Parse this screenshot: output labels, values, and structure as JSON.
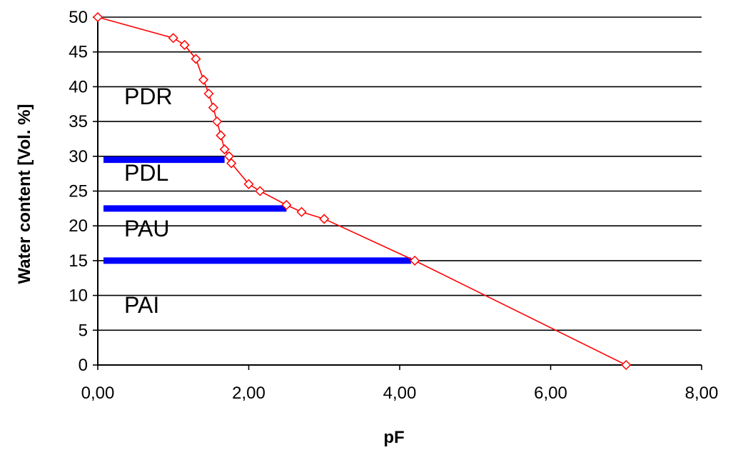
{
  "chart_data": {
    "type": "line",
    "xlabel": "pF",
    "ylabel": "Water content [Vol. %]",
    "xlim": [
      0,
      8
    ],
    "ylim": [
      0,
      50
    ],
    "x_ticks": [
      "0,00",
      "2,00",
      "4,00",
      "6,00",
      "8,00"
    ],
    "y_ticks": [
      "0",
      "5",
      "10",
      "15",
      "20",
      "25",
      "30",
      "35",
      "40",
      "45",
      "50"
    ],
    "grid": "horizontal",
    "series": [
      {
        "color": "#ff0000",
        "marker": "diamond",
        "x": [
          0.0,
          1.0,
          1.15,
          1.3,
          1.4,
          1.47,
          1.53,
          1.58,
          1.63,
          1.68,
          1.74,
          1.77,
          2.0,
          2.15,
          2.5,
          2.7,
          3.0,
          4.2,
          7.0
        ],
        "y": [
          50,
          47,
          46,
          44,
          41,
          39,
          37,
          35,
          33,
          31,
          30,
          29,
          26,
          25,
          23,
          22,
          21,
          15,
          0
        ]
      }
    ],
    "threshold_bars": [
      {
        "y": 29.5,
        "x_start": 0.0,
        "x_end": 1.68,
        "color": "#0000ff"
      },
      {
        "y": 22.5,
        "x_start": 0.0,
        "x_end": 2.5,
        "color": "#0000ff"
      },
      {
        "y": 15.0,
        "x_start": 0.0,
        "x_end": 4.15,
        "color": "#0000ff"
      }
    ],
    "region_labels": [
      {
        "text": "PDR",
        "x": 0.35,
        "y": 37.5
      },
      {
        "text": "PDL",
        "x": 0.35,
        "y": 26.5
      },
      {
        "text": "PAU",
        "x": 0.35,
        "y": 18.5
      },
      {
        "text": "PAI",
        "x": 0.35,
        "y": 7.5
      }
    ]
  }
}
